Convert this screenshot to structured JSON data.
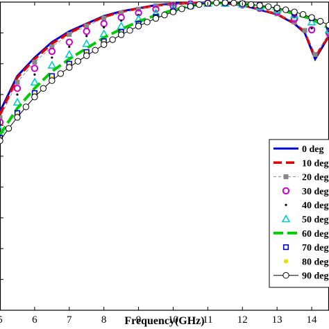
{
  "chart_data": {
    "type": "line",
    "xlabel": "Frequency(GHz)",
    "ylabel": "",
    "title": "",
    "xlim": [
      5,
      14.5
    ],
    "ylim": [
      0,
      1
    ],
    "x_ticks": [
      "5",
      "6",
      "7",
      "8",
      "9",
      "10",
      "11",
      "12",
      "13",
      "14"
    ],
    "grid": false,
    "legend_position": "bottom-right",
    "series": [
      {
        "name": "0 deg",
        "color": "#0000cc",
        "style": "solid",
        "marker": "none",
        "x": [
          5,
          5.5,
          6,
          6.5,
          7,
          7.5,
          8,
          8.5,
          9,
          9.5,
          10,
          10.5,
          11,
          11.5,
          12,
          12.5,
          13,
          13.5,
          13.8,
          14.1,
          14.5
        ],
        "y": [
          0.645,
          0.76,
          0.82,
          0.87,
          0.905,
          0.93,
          0.955,
          0.97,
          0.98,
          0.99,
          0.995,
          0.997,
          0.998,
          0.996,
          0.99,
          0.975,
          0.96,
          0.93,
          0.9,
          0.815,
          0.89
        ]
      },
      {
        "name": "10 deg",
        "color": "#dd0000",
        "style": "dashed",
        "marker": "none",
        "x": [
          5,
          5.5,
          6,
          6.5,
          7,
          7.5,
          8,
          8.5,
          9,
          9.5,
          10,
          10.5,
          11,
          11.5,
          12,
          12.5,
          13,
          13.5,
          13.8,
          14.1,
          14.5
        ],
        "y": [
          0.635,
          0.755,
          0.815,
          0.865,
          0.9,
          0.928,
          0.952,
          0.968,
          0.979,
          0.989,
          0.994,
          0.997,
          0.998,
          0.996,
          0.99,
          0.976,
          0.961,
          0.932,
          0.903,
          0.82,
          0.892
        ]
      },
      {
        "name": "20 deg",
        "color": "#888888",
        "style": "dashed",
        "marker": "square-filled",
        "x": [
          5,
          5.5,
          6,
          6.5,
          7,
          7.5,
          8,
          8.5,
          9,
          9.5,
          10,
          10.5,
          11,
          11.5,
          12,
          12.5,
          13,
          13.5,
          13.8,
          14.1,
          14.5
        ],
        "y": [
          0.625,
          0.74,
          0.805,
          0.855,
          0.895,
          0.922,
          0.948,
          0.965,
          0.977,
          0.988,
          0.994,
          0.997,
          0.998,
          0.996,
          0.99,
          0.977,
          0.962,
          0.935,
          0.908,
          0.83,
          0.895
        ]
      },
      {
        "name": "30 deg",
        "color": "#cc00cc",
        "style": "none",
        "marker": "circle",
        "x": [
          5,
          5.5,
          6,
          6.5,
          7,
          7.5,
          8,
          8.5,
          9,
          9.5,
          10,
          10.5,
          11,
          11.5,
          12,
          12.5,
          13,
          13.5,
          14,
          14.5
        ],
        "y": [
          0.61,
          0.72,
          0.785,
          0.84,
          0.87,
          0.905,
          0.93,
          0.95,
          0.965,
          0.977,
          0.988,
          0.994,
          0.997,
          0.996,
          0.991,
          0.98,
          0.968,
          0.945,
          0.91,
          0.9
        ]
      },
      {
        "name": "40 deg",
        "color": "#000000",
        "style": "none",
        "marker": "dot",
        "x": [
          5,
          5.5,
          6,
          6.5,
          7,
          7.5,
          8,
          8.5,
          9,
          9.5,
          10,
          10.5,
          11,
          11.5,
          12,
          12.5,
          13,
          13.5,
          14,
          14.5
        ],
        "y": [
          0.6,
          0.7,
          0.765,
          0.82,
          0.855,
          0.89,
          0.918,
          0.94,
          0.958,
          0.972,
          0.985,
          0.993,
          0.997,
          0.996,
          0.992,
          0.982,
          0.97,
          0.95,
          0.915,
          0.905
        ]
      },
      {
        "name": "50 deg",
        "color": "#00cccc",
        "style": "none",
        "marker": "triangle",
        "x": [
          5,
          5.5,
          6,
          6.5,
          7,
          7.5,
          8,
          8.5,
          9,
          9.5,
          10,
          10.5,
          11,
          11.5,
          12,
          12.5,
          13,
          13.5,
          14,
          14.5
        ],
        "y": [
          0.585,
          0.675,
          0.74,
          0.795,
          0.83,
          0.865,
          0.897,
          0.922,
          0.945,
          0.963,
          0.978,
          0.99,
          0.996,
          0.996,
          0.993,
          0.985,
          0.975,
          0.958,
          0.935,
          0.91
        ]
      },
      {
        "name": "60 deg",
        "color": "#00cc00",
        "style": "dashed",
        "marker": "none",
        "x": [
          5,
          5.5,
          6,
          6.5,
          7,
          7.5,
          8,
          8.5,
          9,
          9.5,
          10,
          10.5,
          11,
          11.5,
          12,
          12.5,
          13,
          13.5,
          14,
          14.5
        ],
        "y": [
          0.57,
          0.655,
          0.72,
          0.775,
          0.815,
          0.85,
          0.885,
          0.912,
          0.937,
          0.957,
          0.974,
          0.988,
          0.996,
          0.997,
          0.994,
          0.987,
          0.978,
          0.962,
          0.945,
          0.915
        ]
      },
      {
        "name": "70 deg",
        "color": "#0000cc",
        "style": "none",
        "marker": "square",
        "x": [
          5,
          5.5,
          6,
          6.5,
          7,
          7.5,
          8,
          8.5,
          9,
          9.5,
          10,
          10.5,
          11,
          11.5,
          12,
          12.5,
          13,
          13.5,
          14,
          14.5
        ],
        "y": [
          0.56,
          0.64,
          0.705,
          0.76,
          0.8,
          0.838,
          0.873,
          0.903,
          0.93,
          0.952,
          0.97,
          0.986,
          0.995,
          0.997,
          0.995,
          0.989,
          0.98,
          0.965,
          0.948,
          0.92
        ]
      },
      {
        "name": "80 deg",
        "color": "#eedd00",
        "style": "none",
        "marker": "dot",
        "x": [
          5,
          5.5,
          6,
          6.5,
          7,
          7.5,
          8,
          8.5,
          9,
          9.5,
          10,
          10.5,
          11,
          11.5,
          12,
          12.5,
          13,
          13.5,
          14,
          14.5
        ],
        "y": [
          0.555,
          0.632,
          0.698,
          0.752,
          0.794,
          0.832,
          0.868,
          0.898,
          0.926,
          0.95,
          0.969,
          0.985,
          0.995,
          0.997,
          0.995,
          0.99,
          0.981,
          0.967,
          0.95,
          0.922
        ]
      },
      {
        "name": "90 deg",
        "color": "#000000",
        "style": "solid",
        "marker": "circle-open",
        "x": [
          5,
          5.25,
          5.5,
          5.75,
          6,
          6.25,
          6.5,
          6.75,
          7,
          7.25,
          7.5,
          7.75,
          8,
          8.25,
          8.5,
          8.75,
          9,
          9.25,
          9.5,
          9.75,
          10,
          10.25,
          10.5,
          10.75,
          11,
          11.25,
          11.5,
          11.75,
          12,
          12.25,
          12.5,
          12.75,
          13,
          13.25,
          13.5,
          13.75,
          14,
          14.25,
          14.5
        ],
        "y": [
          0.55,
          0.59,
          0.626,
          0.66,
          0.692,
          0.72,
          0.745,
          0.768,
          0.788,
          0.808,
          0.826,
          0.844,
          0.862,
          0.878,
          0.894,
          0.908,
          0.922,
          0.935,
          0.947,
          0.958,
          0.968,
          0.978,
          0.986,
          0.992,
          0.996,
          0.998,
          0.998,
          0.997,
          0.995,
          0.992,
          0.989,
          0.985,
          0.981,
          0.975,
          0.968,
          0.96,
          0.95,
          0.938,
          0.925
        ]
      }
    ]
  }
}
